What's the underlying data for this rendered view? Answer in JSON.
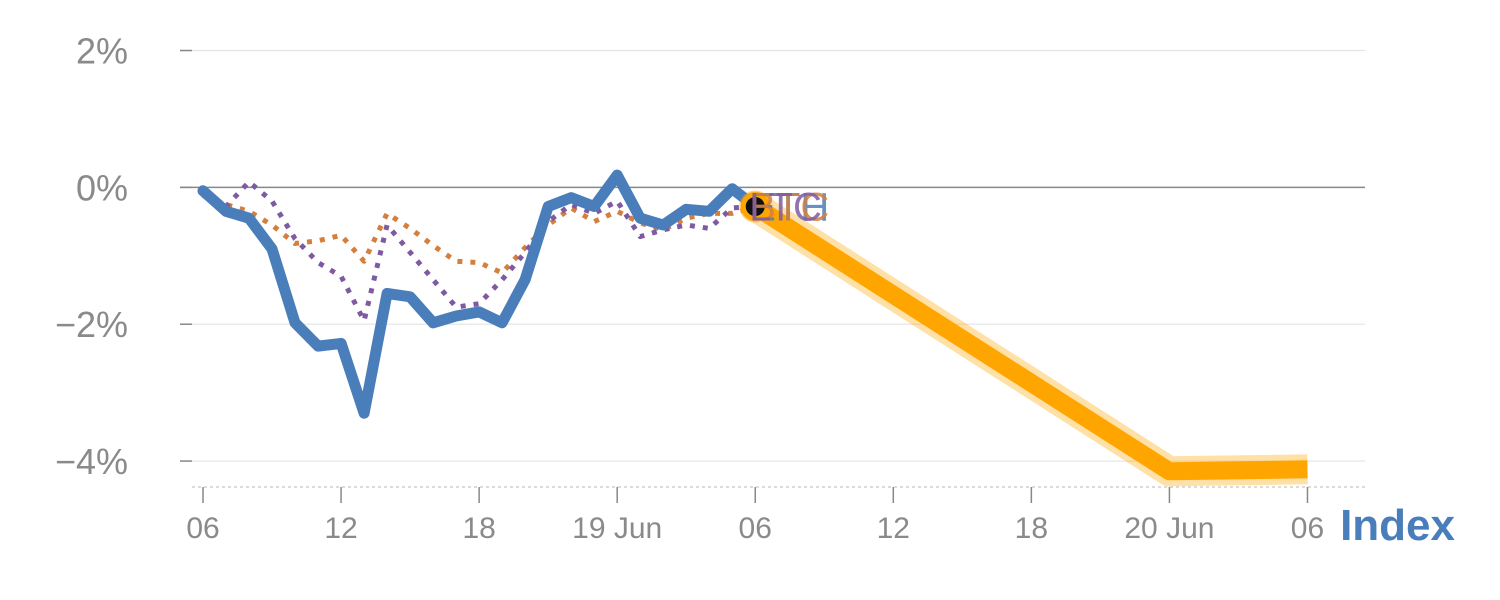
{
  "chart_data": {
    "type": "line",
    "x_tick_labels": [
      "06",
      "12",
      "18",
      "19 Jun",
      "06",
      "12",
      "18",
      "20 Jun",
      "06"
    ],
    "y_tick_labels": [
      "2%",
      "0%",
      "−2%",
      "−4%"
    ],
    "y_ticks": [
      2,
      0,
      -2,
      -4
    ],
    "ylim": [
      -4.35,
      2.3
    ],
    "xlim": [
      -1,
      50.5
    ],
    "legend_label": "Index",
    "end_labels": [
      "ETH",
      "BTC",
      "LTC"
    ],
    "series": [
      {
        "color": "#4a7ebb",
        "style": "solid",
        "values": [
          [
            0,
            -0.05
          ],
          [
            1,
            -0.35
          ],
          [
            2,
            -0.45
          ],
          [
            3,
            -0.9
          ],
          [
            4,
            -1.98
          ],
          [
            5,
            -2.32
          ],
          [
            6,
            -2.28
          ],
          [
            7,
            -3.3
          ],
          [
            8,
            -1.55
          ],
          [
            9,
            -1.6
          ],
          [
            10,
            -1.98
          ],
          [
            11,
            -1.88
          ],
          [
            12,
            -1.82
          ],
          [
            13,
            -1.98
          ],
          [
            14,
            -1.35
          ],
          [
            15,
            -0.28
          ],
          [
            16,
            -0.15
          ],
          [
            17,
            -0.28
          ],
          [
            18,
            0.18
          ],
          [
            19,
            -0.45
          ],
          [
            20,
            -0.55
          ],
          [
            21,
            -0.32
          ],
          [
            22,
            -0.35
          ],
          [
            23,
            -0.02
          ],
          [
            24,
            -0.28
          ]
        ]
      },
      {
        "color": "#d47f3e",
        "style": "dotted",
        "values": [
          [
            0,
            -0.12
          ],
          [
            1,
            -0.25
          ],
          [
            2,
            -0.35
          ],
          [
            3,
            -0.55
          ],
          [
            4,
            -0.82
          ],
          [
            5,
            -0.78
          ],
          [
            6,
            -0.7
          ],
          [
            7,
            -1.08
          ],
          [
            8,
            -0.38
          ],
          [
            9,
            -0.6
          ],
          [
            10,
            -0.85
          ],
          [
            11,
            -1.08
          ],
          [
            12,
            -1.1
          ],
          [
            13,
            -1.25
          ],
          [
            14,
            -0.88
          ],
          [
            15,
            -0.55
          ],
          [
            16,
            -0.3
          ],
          [
            17,
            -0.5
          ],
          [
            18,
            -0.35
          ],
          [
            19,
            -0.52
          ],
          [
            20,
            -0.62
          ],
          [
            21,
            -0.45
          ],
          [
            22,
            -0.38
          ],
          [
            23,
            -0.38
          ],
          [
            24,
            -0.28
          ]
        ]
      },
      {
        "color": "#7e5aa2",
        "style": "dotted",
        "values": [
          [
            0,
            -0.08
          ],
          [
            1,
            -0.28
          ],
          [
            2,
            0.08
          ],
          [
            3,
            -0.2
          ],
          [
            4,
            -0.75
          ],
          [
            5,
            -1.1
          ],
          [
            6,
            -1.3
          ],
          [
            7,
            -1.95
          ],
          [
            8,
            -0.55
          ],
          [
            9,
            -0.95
          ],
          [
            10,
            -1.35
          ],
          [
            11,
            -1.75
          ],
          [
            12,
            -1.7
          ],
          [
            13,
            -1.35
          ],
          [
            14,
            -0.95
          ],
          [
            15,
            -0.5
          ],
          [
            16,
            -0.25
          ],
          [
            17,
            -0.38
          ],
          [
            18,
            -0.2
          ],
          [
            19,
            -0.72
          ],
          [
            20,
            -0.62
          ],
          [
            21,
            -0.55
          ],
          [
            22,
            -0.6
          ],
          [
            23,
            -0.3
          ],
          [
            24,
            -0.28
          ]
        ]
      },
      {
        "color": "#ffa500",
        "style": "highlight",
        "values": [
          [
            24,
            -0.28
          ],
          [
            42,
            -4.15
          ],
          [
            48,
            -4.12
          ]
        ]
      }
    ],
    "marker": {
      "x": 24,
      "y": -0.28,
      "color": "#ffa500"
    }
  }
}
